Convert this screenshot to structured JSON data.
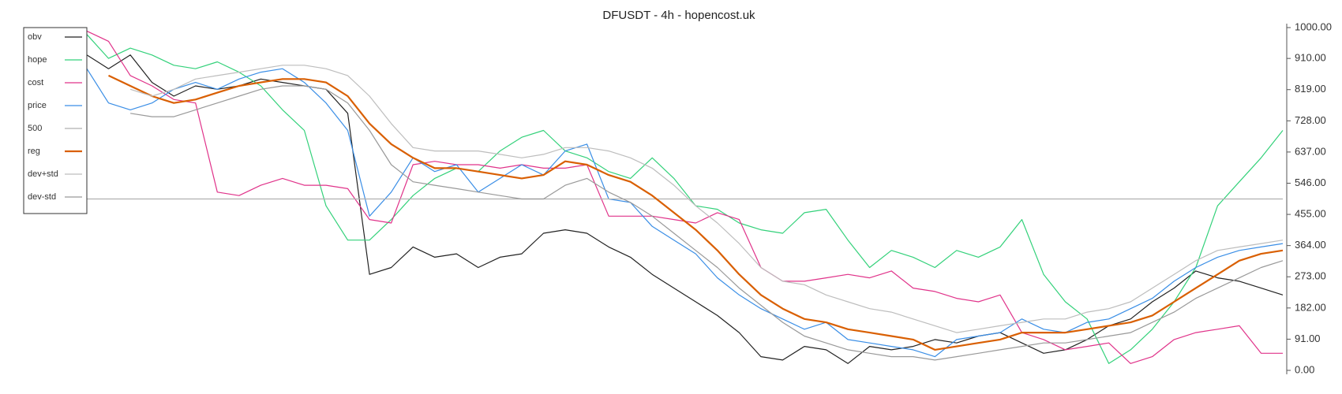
{
  "chart_data": {
    "type": "line",
    "title": "DFUSDT - 4h - hopencost.uk",
    "ylim": [
      0,
      1000
    ],
    "yticks": [
      {
        "value": 0,
        "label": "0.00"
      },
      {
        "value": 91,
        "label": "91.00"
      },
      {
        "value": 182,
        "label": "182.00"
      },
      {
        "value": 273,
        "label": "273.00"
      },
      {
        "value": 364,
        "label": "364.00"
      },
      {
        "value": 455,
        "label": "455.00"
      },
      {
        "value": 546,
        "label": "546.00"
      },
      {
        "value": 637,
        "label": "637.00"
      },
      {
        "value": 728,
        "label": "728.00"
      },
      {
        "value": 819,
        "label": "819.00"
      },
      {
        "value": 910,
        "label": "910.00"
      },
      {
        "value": 1000,
        "label": "1000.00"
      }
    ],
    "legend": "upper left",
    "series": [
      {
        "name": "obv",
        "color": "#222222",
        "values": [
          920,
          880,
          920,
          840,
          800,
          830,
          820,
          830,
          850,
          840,
          830,
          820,
          750,
          280,
          300,
          360,
          330,
          340,
          300,
          330,
          340,
          400,
          410,
          400,
          360,
          330,
          280,
          240,
          200,
          160,
          110,
          40,
          30,
          70,
          60,
          20,
          70,
          60,
          70,
          90,
          80,
          100,
          110,
          80,
          50,
          60,
          90,
          130,
          150,
          200,
          240,
          290,
          270,
          260,
          240,
          220
        ]
      },
      {
        "name": "hope",
        "color": "#33d17a",
        "values": [
          980,
          910,
          940,
          920,
          890,
          880,
          900,
          870,
          830,
          760,
          700,
          480,
          380,
          380,
          440,
          510,
          560,
          590,
          580,
          640,
          680,
          700,
          640,
          620,
          580,
          560,
          620,
          560,
          480,
          470,
          430,
          410,
          400,
          460,
          470,
          380,
          300,
          350,
          330,
          300,
          350,
          330,
          360,
          440,
          280,
          200,
          150,
          20,
          60,
          120,
          200,
          300,
          480,
          550,
          620,
          700
        ]
      },
      {
        "name": "cost",
        "color": "#e0338a",
        "values": [
          990,
          960,
          860,
          830,
          790,
          780,
          520,
          510,
          540,
          560,
          540,
          540,
          530,
          440,
          430,
          600,
          610,
          600,
          600,
          590,
          600,
          590,
          590,
          600,
          450,
          450,
          450,
          440,
          430,
          460,
          440,
          300,
          260,
          260,
          270,
          280,
          270,
          290,
          240,
          230,
          210,
          200,
          220,
          110,
          90,
          60,
          70,
          80,
          20,
          40,
          90,
          110,
          120,
          130,
          50,
          50
        ]
      },
      {
        "name": "price",
        "color": "#3a8ee6",
        "values": [
          880,
          780,
          760,
          780,
          820,
          840,
          820,
          850,
          870,
          880,
          840,
          780,
          700,
          450,
          520,
          620,
          580,
          600,
          520,
          560,
          600,
          570,
          640,
          660,
          500,
          490,
          420,
          380,
          340,
          270,
          220,
          180,
          150,
          120,
          140,
          90,
          80,
          70,
          60,
          40,
          90,
          100,
          110,
          150,
          120,
          110,
          140,
          150,
          180,
          210,
          260,
          300,
          330,
          350,
          360,
          370
        ]
      },
      {
        "name": "500",
        "color": "#b0b0b0",
        "values": [
          500,
          500,
          500,
          500,
          500,
          500,
          500,
          500,
          500,
          500,
          500,
          500,
          500,
          500,
          500,
          500,
          500,
          500,
          500,
          500,
          500,
          500,
          500,
          500,
          500,
          500,
          500,
          500,
          500,
          500,
          500,
          500,
          500,
          500,
          500,
          500,
          500,
          500,
          500,
          500,
          500,
          500,
          500,
          500,
          500,
          500,
          500,
          500,
          500,
          500,
          500,
          500,
          500,
          500,
          500,
          500
        ]
      },
      {
        "name": "reg",
        "color": "#d95f02",
        "width": 2.2,
        "values": [
          null,
          860,
          830,
          800,
          780,
          790,
          810,
          830,
          840,
          850,
          850,
          840,
          800,
          720,
          660,
          620,
          590,
          590,
          580,
          570,
          560,
          570,
          610,
          600,
          570,
          550,
          510,
          460,
          410,
          350,
          280,
          220,
          180,
          150,
          140,
          120,
          110,
          100,
          90,
          60,
          70,
          80,
          90,
          110,
          110,
          110,
          120,
          130,
          140,
          160,
          200,
          240,
          280,
          320,
          340,
          350
        ]
      },
      {
        "name": "dev+std",
        "color": "#bdbdbd",
        "values": [
          null,
          null,
          820,
          800,
          820,
          850,
          860,
          870,
          880,
          890,
          890,
          880,
          860,
          800,
          720,
          650,
          640,
          640,
          640,
          630,
          620,
          630,
          650,
          650,
          640,
          620,
          590,
          540,
          480,
          430,
          370,
          300,
          260,
          250,
          220,
          200,
          180,
          170,
          150,
          130,
          110,
          120,
          130,
          140,
          150,
          150,
          170,
          180,
          200,
          240,
          280,
          320,
          350,
          360,
          370,
          380
        ]
      },
      {
        "name": "dev-std",
        "color": "#999999",
        "values": [
          null,
          null,
          750,
          740,
          740,
          760,
          780,
          800,
          820,
          830,
          830,
          820,
          780,
          700,
          600,
          550,
          540,
          530,
          520,
          510,
          500,
          500,
          540,
          560,
          520,
          490,
          450,
          400,
          350,
          300,
          240,
          190,
          140,
          100,
          80,
          60,
          50,
          40,
          40,
          30,
          40,
          50,
          60,
          70,
          80,
          80,
          90,
          100,
          110,
          140,
          170,
          210,
          240,
          270,
          300,
          320
        ]
      }
    ]
  }
}
